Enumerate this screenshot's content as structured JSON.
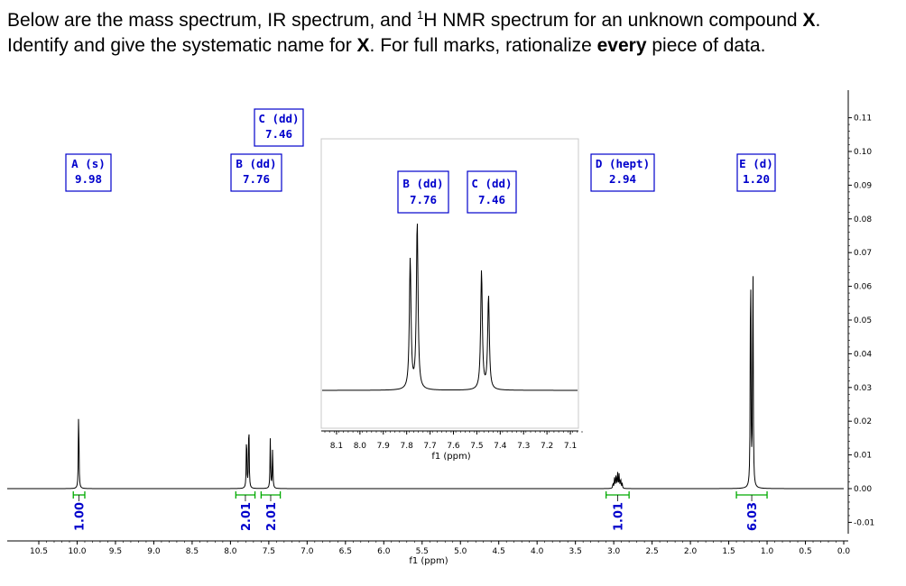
{
  "question": {
    "line1_part1": "Below are the mass spectrum, IR spectrum, and ",
    "line1_sup": "1",
    "line1_part2": "H NMR spectrum for an unknown compound ",
    "line1_bold": "X",
    "line1_end": ".",
    "line2_part1": "Identify and give the systematic name for ",
    "line2_bold1": "X",
    "line2_part2": ".  For full marks, rationalize ",
    "line2_bold2": "every",
    "line2_part3": " piece of data."
  },
  "chart_data": [
    {
      "type": "line",
      "name": "main-spectrum",
      "xlabel": "f1 (ppm)",
      "ylabel": "",
      "xlim": [
        10.5,
        0.0
      ],
      "ylim": [
        -0.01,
        0.11
      ],
      "x_ticks": [
        "10.5",
        "10.0",
        "9.5",
        "9.0",
        "8.5",
        "8.0",
        "7.5",
        "7.0",
        "6.5",
        "6.0",
        "5.5",
        "5.0",
        "4.5",
        "4.0",
        "3.5",
        "3.0",
        "2.5",
        "2.0",
        "1.5",
        "1.0",
        "0.5",
        "0.0"
      ],
      "y_ticks": [
        "0.11",
        "0.10",
        "0.09",
        "0.08",
        "0.07",
        "0.06",
        "0.05",
        "0.04",
        "0.03",
        "0.02",
        "0.01",
        "0.00",
        "-0.01"
      ],
      "peaks": [
        {
          "id": "A",
          "mult": "s",
          "shift": "9.98",
          "lines": [
            {
              "x": 9.98,
              "h": 0.025
            }
          ]
        },
        {
          "id": "B",
          "mult": "dd",
          "shift": "7.76",
          "lines": [
            {
              "x": 7.79,
              "h": 0.017
            },
            {
              "x": 7.76,
              "h": 0.0215
            }
          ]
        },
        {
          "id": "C",
          "mult": "dd",
          "shift": "7.46",
          "lines": [
            {
              "x": 7.48,
              "h": 0.015
            },
            {
              "x": 7.45,
              "h": 0.012
            }
          ]
        },
        {
          "id": "D",
          "mult": "hept",
          "shift": "2.94",
          "lines": [
            {
              "x": 3.01,
              "h": 0.0015
            },
            {
              "x": 2.99,
              "h": 0.003
            },
            {
              "x": 2.97,
              "h": 0.0043
            },
            {
              "x": 2.95,
              "h": 0.0048
            },
            {
              "x": 2.93,
              "h": 0.0043
            },
            {
              "x": 2.91,
              "h": 0.003
            },
            {
              "x": 2.89,
              "h": 0.0015
            }
          ]
        },
        {
          "id": "E",
          "mult": "d",
          "shift": "1.20",
          "lines": [
            {
              "x": 1.215,
              "h": 0.0755
            },
            {
              "x": 1.185,
              "h": 0.0735
            }
          ]
        }
      ],
      "annotations": [
        {
          "id": "A",
          "label1": "A (s)",
          "label2": "9.98"
        },
        {
          "id": "B",
          "label1": "B (dd)",
          "label2": "7.76"
        },
        {
          "id": "C",
          "label1": "C (dd)",
          "label2": "7.46"
        },
        {
          "id": "D",
          "label1": "D (hept)",
          "label2": "2.94"
        },
        {
          "id": "E",
          "label1": "E (d)",
          "label2": "1.20"
        }
      ],
      "integrals": [
        {
          "from": 10.05,
          "to": 9.9,
          "value": "1.00"
        },
        {
          "from": 7.93,
          "to": 7.68,
          "value": "2.01"
        },
        {
          "from": 7.6,
          "to": 7.35,
          "value": "2.01"
        },
        {
          "from": 3.1,
          "to": 2.8,
          "value": "1.01"
        },
        {
          "from": 1.4,
          "to": 1.0,
          "value": "6.03"
        }
      ]
    },
    {
      "type": "line",
      "name": "inset-spectrum",
      "xlabel": "f1 (ppm)",
      "ylabel": "",
      "xlim": [
        8.15,
        7.05
      ],
      "x_ticks": [
        "8.1",
        "8.0",
        "7.9",
        "7.8",
        "7.7",
        "7.6",
        "7.5",
        "7.4",
        "7.3",
        "7.2",
        "7.1"
      ],
      "annotations": [
        {
          "id": "B",
          "label1": "B (dd)",
          "label2": "7.76"
        },
        {
          "id": "C",
          "label1": "C (dd)",
          "label2": "7.46"
        }
      ],
      "peaks": [
        {
          "x": 7.785,
          "h": 0.72
        },
        {
          "x": 7.755,
          "h": 0.93
        },
        {
          "x": 7.48,
          "h": 0.66
        },
        {
          "x": 7.45,
          "h": 0.52
        }
      ]
    }
  ],
  "colors": {
    "label": "#0000cc",
    "integral": "#00aa00",
    "line": "#000000"
  }
}
